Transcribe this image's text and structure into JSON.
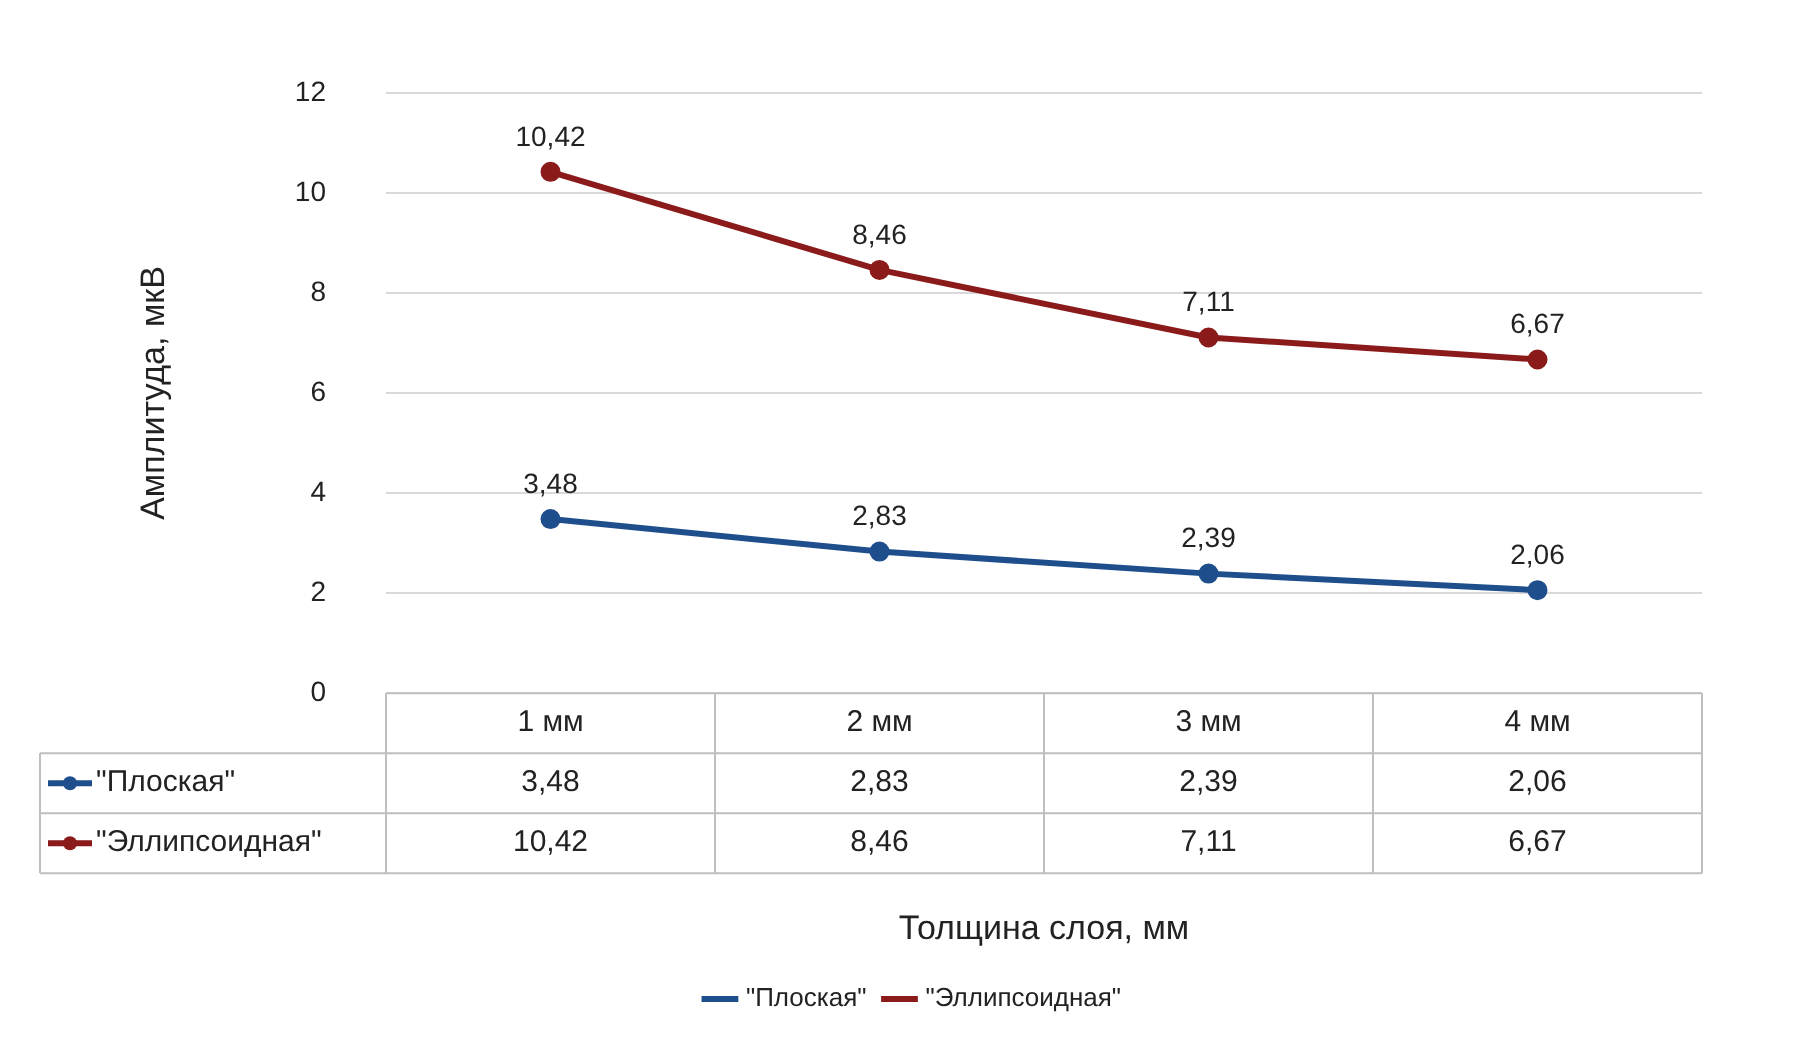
{
  "chart_data": {
    "type": "line",
    "xlabel": "Толщина слоя, мм",
    "ylabel": "Амплитуда, мкВ",
    "categories": [
      "1 мм",
      "2 мм",
      "3 мм",
      "4 мм"
    ],
    "series": [
      {
        "name": "\"Плоская\"",
        "color": "#1f4e8c",
        "values": [
          3.48,
          2.83,
          2.39,
          2.06
        ],
        "value_labels": [
          "3,48",
          "2,83",
          "2,39",
          "2,06"
        ]
      },
      {
        "name": "\"Эллипсоидная\"",
        "color": "#8b1a1a",
        "values": [
          10.42,
          8.46,
          7.11,
          6.67
        ],
        "value_labels": [
          "10,42",
          "8,46",
          "7,11",
          "6,67"
        ]
      }
    ],
    "ylim": [
      0,
      12
    ],
    "yticks": [
      0,
      2,
      4,
      6,
      8,
      10,
      12
    ],
    "grid": "y",
    "legend": "bottom",
    "marker": "circle",
    "line_style": "solid"
  }
}
